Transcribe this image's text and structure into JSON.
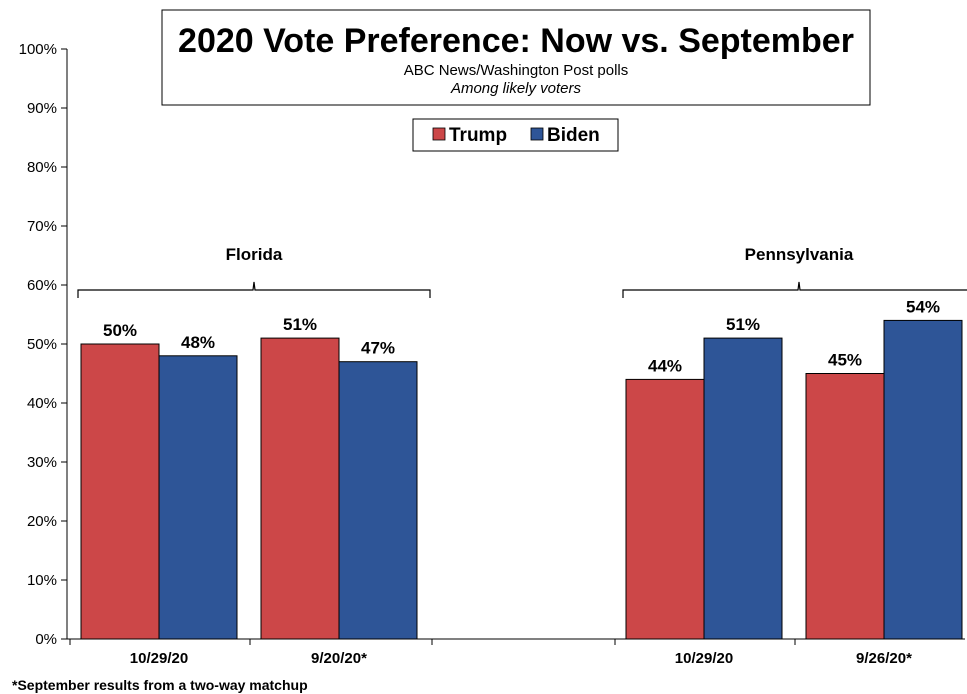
{
  "chart_data": {
    "type": "bar",
    "title": "2020 Vote Preference: Now vs. September",
    "subtitle": "ABC News/Washington Post polls",
    "note": "Among likely voters",
    "footnote": "*September results from a two-way matchup",
    "ylim": [
      0,
      100
    ],
    "yticks": [
      "0%",
      "10%",
      "20%",
      "30%",
      "40%",
      "50%",
      "60%",
      "70%",
      "80%",
      "90%",
      "100%"
    ],
    "grid": false,
    "legend_position": "top-center",
    "series": [
      {
        "name": "Trump",
        "color": "#CC4748"
      },
      {
        "name": "Biden",
        "color": "#2E5597"
      }
    ],
    "groups": [
      {
        "label": "Florida",
        "categories": [
          {
            "label": "10/29/20",
            "values": [
              50,
              48
            ],
            "labels": [
              "50%",
              "48%"
            ]
          },
          {
            "label": "9/20/20*",
            "values": [
              51,
              47
            ],
            "labels": [
              "51%",
              "47%"
            ]
          }
        ]
      },
      {
        "label": "Pennsylvania",
        "categories": [
          {
            "label": "10/29/20",
            "values": [
              44,
              51
            ],
            "labels": [
              "44%",
              "51%"
            ]
          },
          {
            "label": "9/26/20*",
            "values": [
              45,
              54
            ],
            "labels": [
              "45%",
              "54%"
            ]
          }
        ]
      }
    ]
  }
}
